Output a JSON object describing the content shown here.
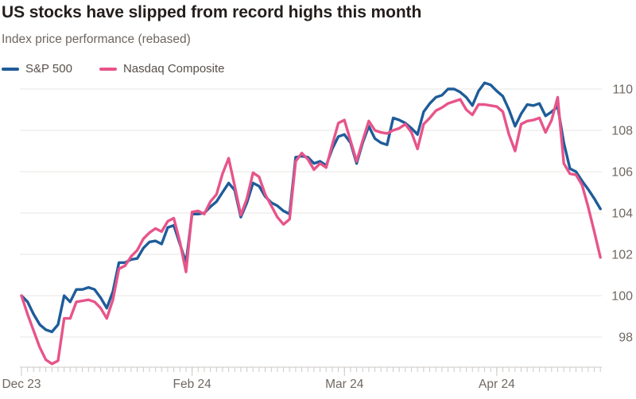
{
  "header": {
    "title": "US stocks have slipped from record highs this month",
    "subtitle": "Index price performance (rebased)"
  },
  "legend": [
    {
      "label": "S&P 500",
      "color": "#1e5c99"
    },
    {
      "label": "Nasdaq Composite",
      "color": "#e7548a"
    }
  ],
  "chart_data": {
    "type": "line",
    "title": "US stocks have slipped from record highs this month",
    "subtitle": "Index price performance (rebased)",
    "grid": "horizontal",
    "legend_position": "top-left",
    "x_axis": {
      "unit": "trading days",
      "total_days": 96,
      "tick_labels": [
        {
          "label": "Dec 23",
          "day": 0
        },
        {
          "label": "Feb 24",
          "day": 28
        },
        {
          "label": "Mar 24",
          "day": 53
        },
        {
          "label": "Apr 24",
          "day": 78
        }
      ]
    },
    "y_axis": {
      "side": "right",
      "ticks": [
        110,
        108,
        106,
        104,
        102,
        100,
        98
      ],
      "ylim": [
        96.5,
        110.8
      ]
    },
    "style": {
      "gridline_color": "#e8e5e1",
      "axis_color": "#cdc9c4",
      "tick_color": "#cdc9c4",
      "axis_label_color": "#6f6862"
    },
    "series": [
      {
        "name": "S&P 500",
        "color": "#1e5c99",
        "values": [
          100.0,
          99.7,
          99.1,
          98.6,
          98.35,
          98.25,
          98.6,
          100.0,
          99.7,
          100.3,
          100.3,
          100.4,
          100.3,
          99.9,
          99.4,
          100.2,
          101.6,
          101.6,
          101.75,
          101.8,
          102.3,
          102.6,
          102.65,
          102.5,
          103.3,
          103.4,
          102.5,
          101.6,
          103.95,
          103.95,
          104.0,
          104.3,
          104.55,
          105.0,
          105.45,
          105.1,
          103.8,
          104.5,
          105.45,
          105.3,
          104.8,
          104.5,
          104.35,
          104.1,
          103.95,
          106.7,
          106.75,
          106.7,
          106.4,
          106.5,
          106.3,
          107.1,
          107.7,
          107.8,
          107.4,
          106.4,
          107.4,
          108.2,
          107.6,
          107.4,
          107.3,
          108.6,
          108.5,
          108.35,
          108.1,
          107.8,
          108.9,
          109.3,
          109.6,
          109.7,
          110.0,
          110.0,
          109.85,
          109.6,
          109.2,
          109.9,
          110.3,
          110.2,
          109.9,
          109.65,
          109.0,
          108.2,
          108.8,
          109.25,
          109.2,
          109.3,
          108.7,
          108.9,
          109.15,
          107.4,
          106.15,
          106.0,
          105.55,
          105.15,
          104.7,
          104.2
        ]
      },
      {
        "name": "Nasdaq Composite",
        "color": "#e7548a",
        "values": [
          100.0,
          99.1,
          98.3,
          97.5,
          96.9,
          96.7,
          96.85,
          98.9,
          98.9,
          99.7,
          99.75,
          99.8,
          99.7,
          99.4,
          98.9,
          99.8,
          101.3,
          101.45,
          101.9,
          102.2,
          102.75,
          103.05,
          103.25,
          103.1,
          103.6,
          103.75,
          102.6,
          101.15,
          104.05,
          104.1,
          103.95,
          104.55,
          104.9,
          105.9,
          106.65,
          105.3,
          103.9,
          104.7,
          105.95,
          105.75,
          104.9,
          104.35,
          103.8,
          103.45,
          103.7,
          106.5,
          106.9,
          106.6,
          106.1,
          106.4,
          106.2,
          107.3,
          108.35,
          108.5,
          107.5,
          106.5,
          107.5,
          108.45,
          108.0,
          107.9,
          107.85,
          108.0,
          108.1,
          108.3,
          107.9,
          107.1,
          108.3,
          108.6,
          108.95,
          109.1,
          109.3,
          109.4,
          109.5,
          109.0,
          108.75,
          109.25,
          109.25,
          109.2,
          109.15,
          108.9,
          107.8,
          107.0,
          108.3,
          108.45,
          108.5,
          108.6,
          107.9,
          108.5,
          109.6,
          106.4,
          105.9,
          105.85,
          105.35,
          104.3,
          103.1,
          101.85
        ]
      }
    ]
  }
}
